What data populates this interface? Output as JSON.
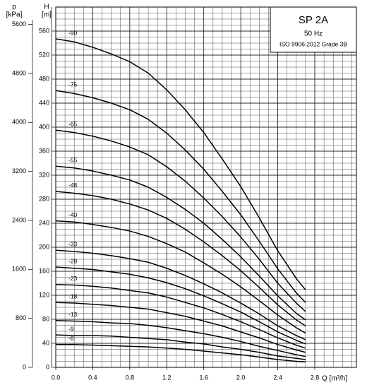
{
  "chart_data": {
    "type": "line",
    "title": "SP 2A",
    "subtitle": "50 Hz",
    "note": "ISO 9906:2012 Grade 3B",
    "x_label": "Q [m³/h]",
    "y_label": "H",
    "y_unit": "[m]",
    "y2_label": "p",
    "y2_unit": "[kPa]",
    "x": [
      0,
      0.2,
      0.4,
      0.6,
      0.8,
      1.0,
      1.2,
      1.4,
      1.6,
      1.8,
      2.0,
      2.2,
      2.4,
      2.6,
      2.7
    ],
    "series": [
      {
        "name": "-90",
        "color": "#000000",
        "values": [
          547,
          542,
          533,
          522,
          509,
          490,
          462,
          429,
          391,
          347,
          301,
          249,
          194,
          148,
          129
        ]
      },
      {
        "name": "-75",
        "color": "#000000",
        "values": [
          461,
          456,
          449,
          440,
          429,
          413,
          390,
          362,
          330,
          293,
          254,
          210,
          164,
          124,
          108
        ]
      },
      {
        "name": "-65",
        "color": "#000000",
        "values": [
          395,
          391,
          385,
          377,
          367,
          354,
          334,
          310,
          282,
          251,
          217,
          180,
          140,
          107,
          93
        ]
      },
      {
        "name": "-55",
        "color": "#000000",
        "values": [
          335,
          332,
          327,
          320,
          312,
          300,
          283,
          263,
          240,
          213,
          184,
          152,
          119,
          90,
          79
        ]
      },
      {
        "name": "-48",
        "color": "#000000",
        "values": [
          293,
          290,
          286,
          280,
          272,
          262,
          248,
          230,
          209,
          186,
          161,
          133,
          104,
          79,
          69
        ]
      },
      {
        "name": "-40",
        "color": "#000000",
        "values": [
          244,
          242,
          238,
          233,
          227,
          218,
          206,
          192,
          174,
          155,
          134,
          111,
          87,
          66,
          57
        ]
      },
      {
        "name": "-33",
        "color": "#000000",
        "values": [
          195,
          193,
          190,
          186,
          181,
          175,
          165,
          153,
          139,
          124,
          107,
          89,
          69,
          53,
          46
        ]
      },
      {
        "name": "-28",
        "color": "#000000",
        "values": [
          167,
          165,
          163,
          159,
          155,
          149,
          141,
          131,
          119,
          106,
          92,
          76,
          59,
          45,
          39
        ]
      },
      {
        "name": "-23",
        "color": "#000000",
        "values": [
          138,
          137,
          135,
          132,
          128,
          124,
          117,
          108,
          99,
          88,
          76,
          63,
          49,
          37,
          32
        ]
      },
      {
        "name": "-18",
        "color": "#000000",
        "values": [
          108,
          107,
          105,
          103,
          100,
          97,
          91,
          85,
          77,
          69,
          59,
          49,
          38,
          29,
          25
        ]
      },
      {
        "name": "-13",
        "color": "#000000",
        "values": [
          78,
          77,
          76,
          74,
          73,
          70,
          66,
          61,
          56,
          50,
          43,
          35,
          28,
          21,
          18
        ]
      },
      {
        "name": "-9",
        "color": "#000000",
        "values": [
          54,
          53,
          53,
          52,
          50,
          48,
          46,
          42,
          39,
          34,
          30,
          25,
          19,
          15,
          13
        ]
      },
      {
        "name": "-6",
        "color": "#000000",
        "values": [
          38,
          38,
          37,
          36,
          35,
          34,
          32,
          30,
          27,
          24,
          21,
          17,
          13,
          10,
          9
        ]
      }
    ],
    "xlim": [
      0,
      3.25
    ],
    "xticks": [
      {
        "value": 0,
        "label": "0.0"
      },
      0.4,
      0.8,
      1.2,
      1.6,
      {
        "value": 2,
        "label": "2.0"
      },
      2.4,
      2.8
    ],
    "ylim": [
      0,
      600
    ],
    "yticks": [
      0,
      40,
      80,
      120,
      160,
      200,
      240,
      280,
      320,
      360,
      400,
      440,
      480,
      520,
      560
    ],
    "y2lim": [
      0,
      5884
    ],
    "y2ticks": [
      0,
      800,
      1600,
      2400,
      3200,
      4000,
      4800,
      5600
    ],
    "grid": true
  }
}
